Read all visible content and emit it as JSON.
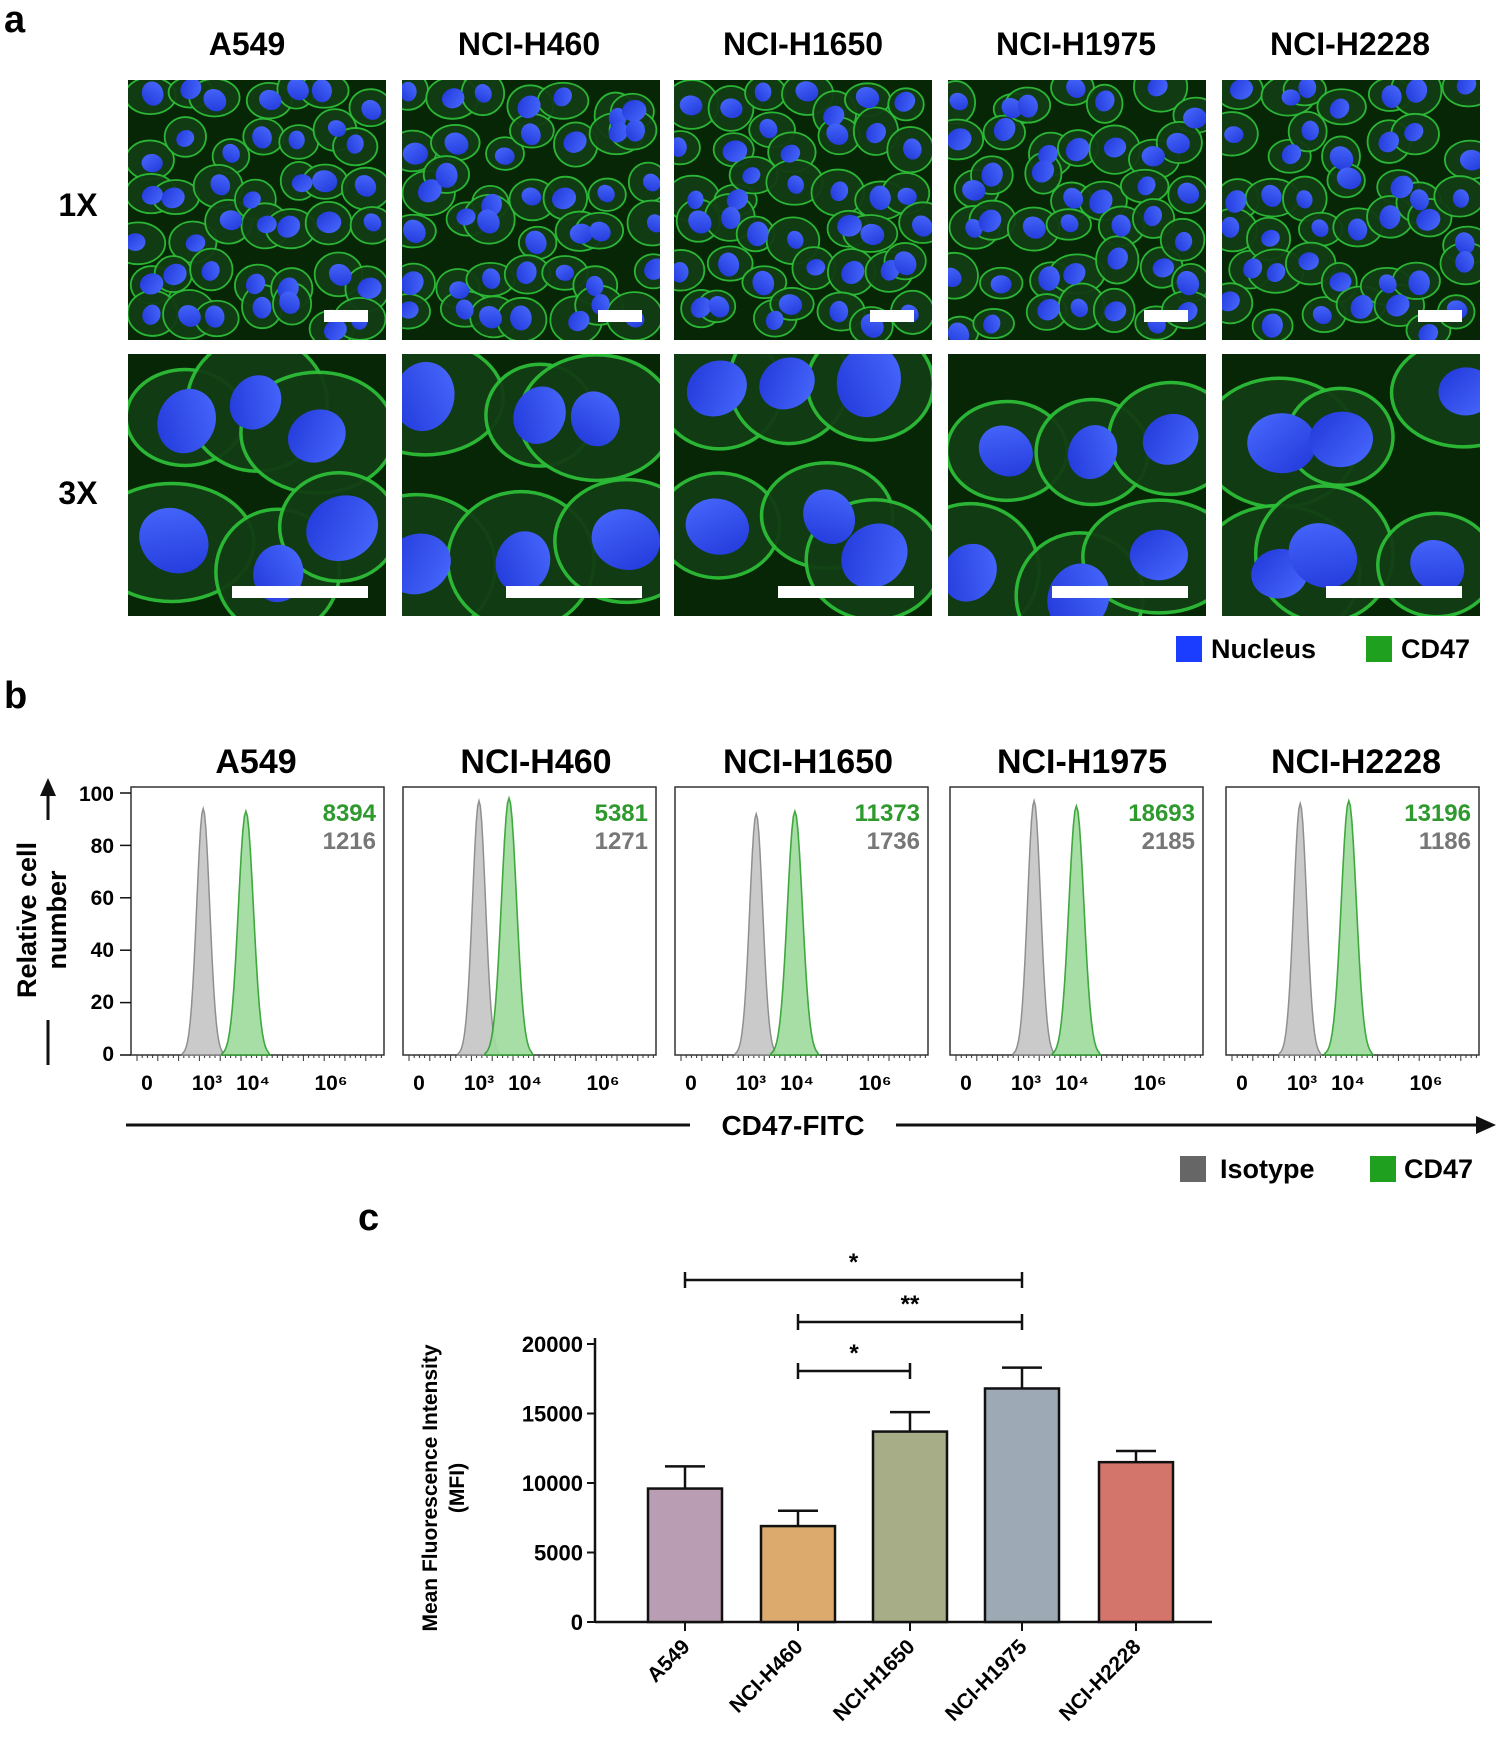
{
  "panel_letters": {
    "a": "a",
    "b": "b",
    "c": "c"
  },
  "cell_lines": [
    "A549",
    "NCI-H460",
    "NCI-H1650",
    "NCI-H1975",
    "NCI-H2228"
  ],
  "panel_a": {
    "row_labels": [
      "1X",
      "3X"
    ],
    "legend": [
      {
        "label": "Nucleus",
        "color": "#1a3dff"
      },
      {
        "label": "CD47",
        "color": "#1fa11f"
      }
    ],
    "colors": {
      "cell_bg": "#062606",
      "membrane": "#2ebd38",
      "nucleus": "#2f4df0",
      "scale_bar": "#ffffff"
    }
  },
  "panel_b": {
    "ylabel_line1": "Relative cell",
    "ylabel_line2": "number",
    "xlabel": "CD47-FITC",
    "y_ticks": [
      "0",
      "20",
      "40",
      "60",
      "80",
      "100"
    ],
    "x_ticks": [
      "0",
      "10³",
      "10⁴",
      "10⁶"
    ],
    "legend": [
      {
        "label": "Isotype",
        "color": "#666666"
      },
      {
        "label": "CD47",
        "color": "#1fa11f"
      }
    ],
    "colors": {
      "isotype_fill": "#c8c8c8",
      "isotype_line": "#8a8a8a",
      "cd47_fill": "#9fdc9f",
      "cd47_line": "#2fa12f",
      "cd47_text": "#2e9a2e",
      "isotype_text": "#777777"
    }
  },
  "chart_data": [
    {
      "type": "area",
      "subtype": "flow cytometry histograms",
      "panels": [
        "A549",
        "NCI-H460",
        "NCI-H1650",
        "NCI-H1975",
        "NCI-H2228"
      ],
      "xlabel": "CD47-FITC",
      "ylabel": "Relative cell number",
      "x_scale": "biexponential",
      "ylim": [
        0,
        100
      ],
      "series": [
        {
          "name": "CD47",
          "mfi": [
            8394,
            5381,
            11373,
            18693,
            13196
          ],
          "peak_x": [
            7000,
            4500,
            9000,
            13000,
            10500
          ],
          "peak_y": [
            93,
            98,
            93,
            95,
            97
          ]
        },
        {
          "name": "Isotype",
          "mfi": [
            1216,
            1271,
            1736,
            2185,
            1186
          ],
          "peak_x": [
            800,
            1000,
            1300,
            1500,
            900
          ],
          "peak_y": [
            94,
            97,
            92,
            97,
            96
          ]
        }
      ]
    },
    {
      "type": "bar",
      "categories": [
        "A549",
        "NCI-H460",
        "NCI-H1650",
        "NCI-H1975",
        "NCI-H2228"
      ],
      "values": [
        9600,
        6900,
        13700,
        16800,
        11500
      ],
      "errors": [
        1600,
        1100,
        1400,
        1500,
        800
      ],
      "colors": [
        "#b99eb3",
        "#ddaa6d",
        "#a6ad87",
        "#9daab6",
        "#d4756c"
      ],
      "ylabel_line1": "Mean Fluorescence Intensity",
      "ylabel_line2": "(MFI)",
      "ylim": [
        0,
        20000
      ],
      "y_ticks": [
        0,
        5000,
        10000,
        15000,
        20000
      ],
      "significance": [
        {
          "from": "A549",
          "to": "NCI-H1975",
          "label": "*"
        },
        {
          "from": "NCI-H460",
          "to": "NCI-H1975",
          "label": "**"
        },
        {
          "from": "NCI-H460",
          "to": "NCI-H1650",
          "label": "*"
        }
      ]
    }
  ]
}
